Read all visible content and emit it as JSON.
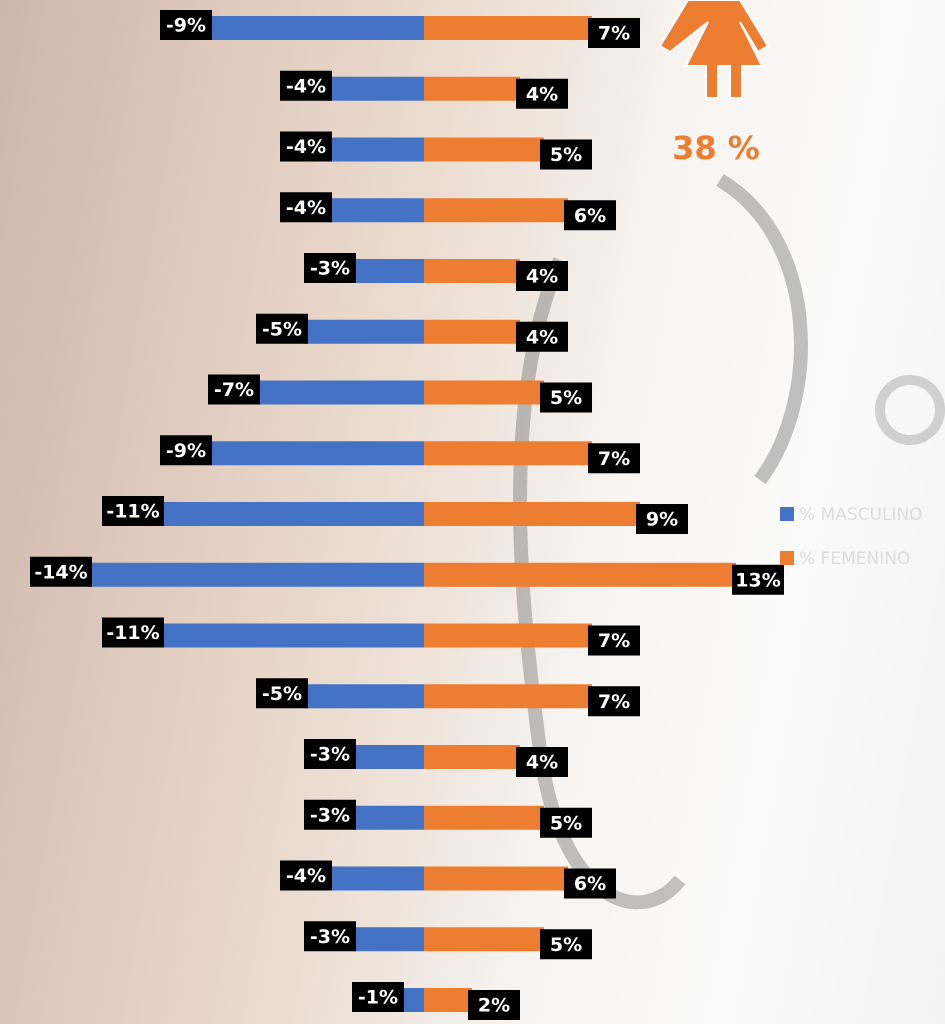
{
  "chart_data": {
    "type": "pyramid",
    "xlim": [
      -15,
      15
    ],
    "series": [
      {
        "name": "% MASCULINO",
        "color": "#4472c4",
        "values": [
          -9,
          -4,
          -4,
          -4,
          -3,
          -5,
          -7,
          -9,
          -11,
          -14,
          -11,
          -5,
          -3,
          -3,
          -4,
          -3,
          -1
        ],
        "value_labels": [
          "-9%",
          "-4%",
          "-4%",
          "-4%",
          "-3%",
          "-5%",
          "-7%",
          "-9%",
          "-11%",
          "-14%",
          "-11%",
          "-5%",
          "-3%",
          "-3%",
          "-4%",
          "-3%",
          "-1%"
        ]
      },
      {
        "name": "% FEMENINO",
        "color": "#ed7d31",
        "values": [
          7,
          4,
          5,
          6,
          4,
          4,
          5,
          7,
          9,
          13,
          7,
          7,
          4,
          5,
          6,
          5,
          2
        ],
        "value_labels": [
          "7%",
          "4%",
          "5%",
          "6%",
          "4%",
          "4%",
          "5%",
          "7%",
          "9%",
          "13%",
          "7%",
          "7%",
          "4%",
          "5%",
          "6%",
          "5%",
          "2%"
        ]
      }
    ],
    "annotation": "38 %"
  }
}
